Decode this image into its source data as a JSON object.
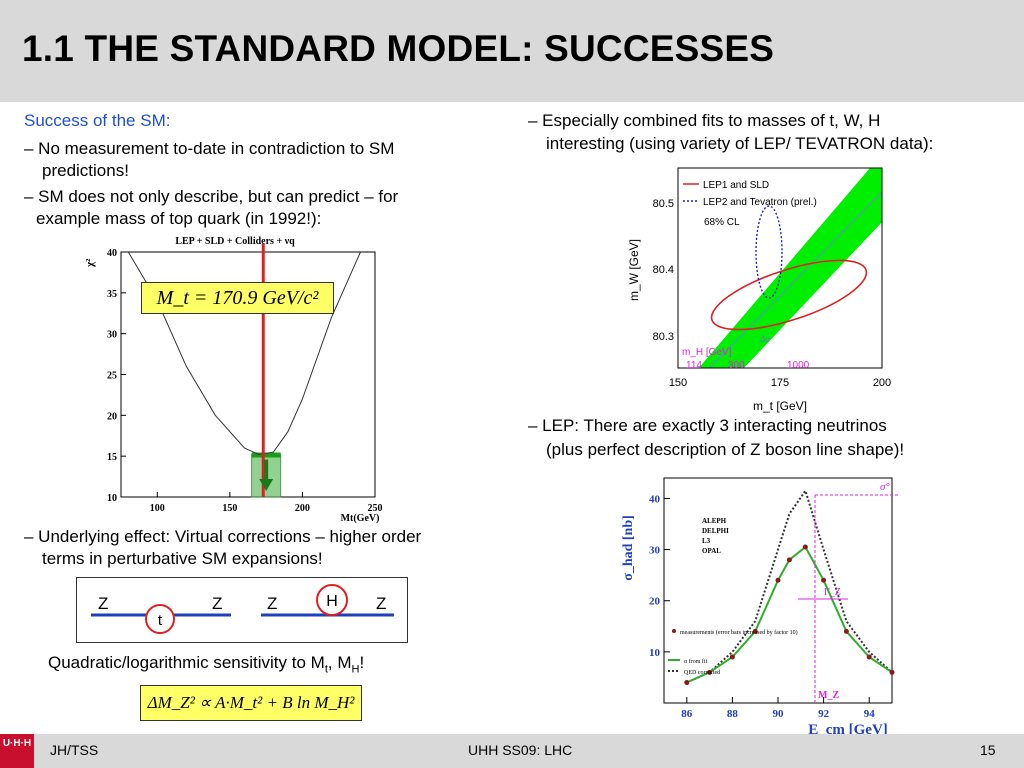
{
  "slide": {
    "title": "1.1 THE STANDARD MODEL: SUCCESSES",
    "left": {
      "heading": "Success of the SM:",
      "bullet1_line1": "– No measurement to-date in contradiction to SM",
      "bullet1_line2": "predictions!",
      "bullet2_line1": "– SM does not only describe, but can predict – for",
      "bullet2_line2": "example mass of top quark (in 1992!):",
      "bullet3_line1": "– Underlying effect: Virtual corrections – higher order",
      "bullet3_line2": "terms in perturbative SM expansions!",
      "sensitivity": "Quadratic/logarithmic sensitivity to M",
      "sens_sub_t": "t",
      "sens_sep": ", M",
      "sens_sub_h": "H",
      "sens_end": "!"
    },
    "right": {
      "bullet1_line1": "– Especially combined fits to masses of t, W, H",
      "bullet1_line2": "interesting (using variety of LEP/ TEVATRON data):",
      "bullet2_line1": "– LEP: There are exactly 3 interacting neutrinos",
      "bullet2_line2": "(plus perfect description of Z boson line shape)!"
    },
    "formula_top": "M_t = 170.9 GeV/c²",
    "formula_bottom": "ΔM_Z² ∝ A·M_t² + B ln M_H²"
  },
  "feynman": {
    "left_in": "Z",
    "left_out": "Z",
    "loop_left": "t",
    "right_in": "Z",
    "right_out": "Z",
    "loop_right": "H"
  },
  "footer": {
    "left": "JH/TSS",
    "center": "UHH SS09: LHC",
    "page": "15",
    "logo": "U·H·H"
  },
  "colors": {
    "accent_blue": "#1f4fd1",
    "header_gray": "#d9d9d9",
    "formula_yellow": "#ffff66",
    "fit_red": "#e02020",
    "band_green": "#00ee00"
  },
  "chart_data": [
    {
      "type": "line",
      "title": "LEP + SLD + Colliders + νq",
      "xlabel": "Mt(GeV)",
      "ylabel": "χ²",
      "xlim": [
        75,
        250
      ],
      "ylim": [
        10,
        40
      ],
      "x_ticks": [
        "100",
        "150",
        "200",
        "250"
      ],
      "y_ticks": [
        "10",
        "15",
        "20",
        "25",
        "30",
        "35",
        "40"
      ],
      "x": [
        80,
        100,
        120,
        140,
        160,
        170,
        180,
        190,
        200,
        220,
        240
      ],
      "series": [
        {
          "values": [
            42,
            34,
            26,
            20,
            16,
            15.2,
            15.5,
            18,
            22,
            32,
            42
          ]
        }
      ],
      "marker_line_x": 173,
      "highlight_band": [
        165,
        185
      ]
    },
    {
      "type": "line",
      "xlabel": "m_t [GeV]",
      "ylabel": "m_W [GeV]",
      "xlim": [
        150,
        200
      ],
      "ylim": [
        80.25,
        80.55
      ],
      "x_ticks": [
        "150",
        "175",
        "200"
      ],
      "y_ticks": [
        "80.3",
        "80.4",
        "80.5"
      ],
      "legend": [
        "LEP1 and SLD",
        "LEP2 and Tevatron (prel.)"
      ],
      "legend_position": "top-left",
      "cl_label": "68% CL",
      "band_label": "m_H [GeV]",
      "band_ticks": [
        "114",
        "300",
        "1000"
      ],
      "delta_label": "Δα"
    },
    {
      "type": "line",
      "xlabel": "E_cm [GeV]",
      "ylabel": "σ_had [nb]",
      "xlim": [
        85,
        95
      ],
      "ylim": [
        0,
        44
      ],
      "x_ticks": [
        "86",
        "88",
        "90",
        "92",
        "94"
      ],
      "y_ticks": [
        "10",
        "20",
        "30",
        "40"
      ],
      "experiments": [
        "ALEPH",
        "DELPHI",
        "L3",
        "OPAL"
      ],
      "legend": [
        "measurements (error bars increased by factor 10)",
        "σ from fit",
        "QED corrected"
      ],
      "labels": {
        "sigma0": "σ°",
        "gamma": "Γ_Z",
        "mz": "M_Z"
      },
      "x": [
        86,
        87,
        88,
        89,
        90,
        90.5,
        91.2,
        92,
        93,
        94,
        95
      ],
      "series": [
        {
          "name": "σ from fit",
          "values": [
            4,
            6,
            9,
            14,
            24,
            28,
            30.5,
            24,
            14,
            9,
            6
          ]
        },
        {
          "name": "QED corrected",
          "values": [
            4,
            6,
            10,
            16,
            30,
            37,
            41.5,
            30,
            16,
            10,
            6
          ]
        }
      ]
    }
  ]
}
